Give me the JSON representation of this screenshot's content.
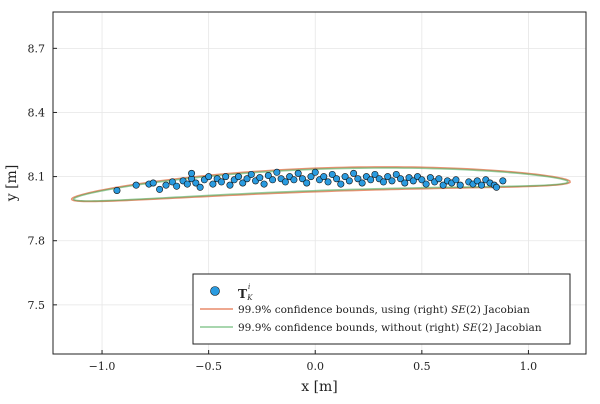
{
  "chart_data": {
    "type": "scatter",
    "title": "",
    "xlabel": "x [m]",
    "ylabel": "y [m]",
    "xlim": [
      -1.23,
      1.27
    ],
    "ylim": [
      7.27,
      8.87
    ],
    "x_ticks": [
      -1.0,
      -0.5,
      0.0,
      0.5,
      1.0
    ],
    "x_tick_labels": [
      "−1.0",
      "−0.5",
      "0.0",
      "0.5",
      "1.0"
    ],
    "y_ticks": [
      7.5,
      7.8,
      8.1,
      8.4,
      8.7
    ],
    "y_tick_labels": [
      "7.5",
      "7.8",
      "8.1",
      "8.4",
      "8.7"
    ],
    "grid": true,
    "legend_position": "bottom-right",
    "colors": {
      "points": "#2a9be0",
      "bounds_jacobian": "#e26f46",
      "bounds_no_jacobian": "#3da44d",
      "overlap": "#9b8a4a"
    },
    "series": [
      {
        "name": "T_K^i",
        "kind": "scatter",
        "color": "#2a9be0",
        "points": [
          [
            -0.93,
            8.035
          ],
          [
            -0.84,
            8.06
          ],
          [
            -0.78,
            8.065
          ],
          [
            -0.76,
            8.07
          ],
          [
            -0.73,
            8.04
          ],
          [
            -0.7,
            8.06
          ],
          [
            -0.67,
            8.075
          ],
          [
            -0.65,
            8.055
          ],
          [
            -0.62,
            8.08
          ],
          [
            -0.6,
            8.065
          ],
          [
            -0.58,
            8.09
          ],
          [
            -0.58,
            8.115
          ],
          [
            -0.56,
            8.07
          ],
          [
            -0.54,
            8.05
          ],
          [
            -0.52,
            8.085
          ],
          [
            -0.5,
            8.1
          ],
          [
            -0.48,
            8.065
          ],
          [
            -0.46,
            8.09
          ],
          [
            -0.44,
            8.075
          ],
          [
            -0.42,
            8.1
          ],
          [
            -0.4,
            8.06
          ],
          [
            -0.38,
            8.085
          ],
          [
            -0.36,
            8.1
          ],
          [
            -0.34,
            8.07
          ],
          [
            -0.32,
            8.09
          ],
          [
            -0.3,
            8.11
          ],
          [
            -0.28,
            8.08
          ],
          [
            -0.26,
            8.095
          ],
          [
            -0.24,
            8.065
          ],
          [
            -0.22,
            8.105
          ],
          [
            -0.2,
            8.085
          ],
          [
            -0.18,
            8.12
          ],
          [
            -0.16,
            8.09
          ],
          [
            -0.14,
            8.075
          ],
          [
            -0.12,
            8.1
          ],
          [
            -0.1,
            8.085
          ],
          [
            -0.08,
            8.115
          ],
          [
            -0.06,
            8.09
          ],
          [
            -0.04,
            8.07
          ],
          [
            -0.02,
            8.1
          ],
          [
            0.0,
            8.12
          ],
          [
            0.02,
            8.085
          ],
          [
            0.04,
            8.1
          ],
          [
            0.06,
            8.075
          ],
          [
            0.08,
            8.11
          ],
          [
            0.1,
            8.09
          ],
          [
            0.12,
            8.065
          ],
          [
            0.14,
            8.1
          ],
          [
            0.16,
            8.08
          ],
          [
            0.18,
            8.115
          ],
          [
            0.2,
            8.09
          ],
          [
            0.22,
            8.07
          ],
          [
            0.24,
            8.1
          ],
          [
            0.26,
            8.085
          ],
          [
            0.28,
            8.11
          ],
          [
            0.3,
            8.09
          ],
          [
            0.32,
            8.075
          ],
          [
            0.34,
            8.1
          ],
          [
            0.36,
            8.08
          ],
          [
            0.38,
            8.11
          ],
          [
            0.4,
            8.09
          ],
          [
            0.42,
            8.07
          ],
          [
            0.44,
            8.095
          ],
          [
            0.46,
            8.08
          ],
          [
            0.48,
            8.1
          ],
          [
            0.5,
            8.085
          ],
          [
            0.52,
            8.065
          ],
          [
            0.54,
            8.095
          ],
          [
            0.56,
            8.075
          ],
          [
            0.58,
            8.09
          ],
          [
            0.6,
            8.06
          ],
          [
            0.62,
            8.08
          ],
          [
            0.64,
            8.07
          ],
          [
            0.66,
            8.085
          ],
          [
            0.68,
            8.06
          ],
          [
            0.72,
            8.075
          ],
          [
            0.74,
            8.065
          ],
          [
            0.76,
            8.08
          ],
          [
            0.78,
            8.06
          ],
          [
            0.8,
            8.085
          ],
          [
            0.82,
            8.07
          ],
          [
            0.84,
            8.06
          ],
          [
            0.85,
            8.05
          ],
          [
            0.88,
            8.08
          ]
        ]
      },
      {
        "name": "99.9% confidence bounds, using (right) SE(2) Jacobian",
        "kind": "line",
        "color": "#e26f46",
        "center": [
          0.025,
          8.085
        ],
        "semi_axes": [
          1.17,
          0.055
        ],
        "rotation_deg": 2.0,
        "note_curvature": 0.05
      },
      {
        "name": "99.9% confidence bounds, without (right) SE(2) Jacobian",
        "kind": "line",
        "color": "#3da44d",
        "center": [
          0.025,
          8.085
        ],
        "semi_axes": [
          1.16,
          0.05
        ],
        "rotation_deg": 2.0,
        "note_curvature": 0.05
      }
    ]
  },
  "legend": {
    "items": [
      {
        "label_main": "T",
        "label_sup": "i",
        "label_sub": "K",
        "marker": "circle"
      },
      {
        "label_pre": "99.9% confidence bounds, using (right) ",
        "label_math": "SE",
        "label_post": "(2) Jacobian",
        "marker": "line"
      },
      {
        "label_pre": "99.9% confidence bounds, without (right) ",
        "label_math": "SE",
        "label_post": "(2) Jacobian",
        "marker": "line"
      }
    ]
  }
}
